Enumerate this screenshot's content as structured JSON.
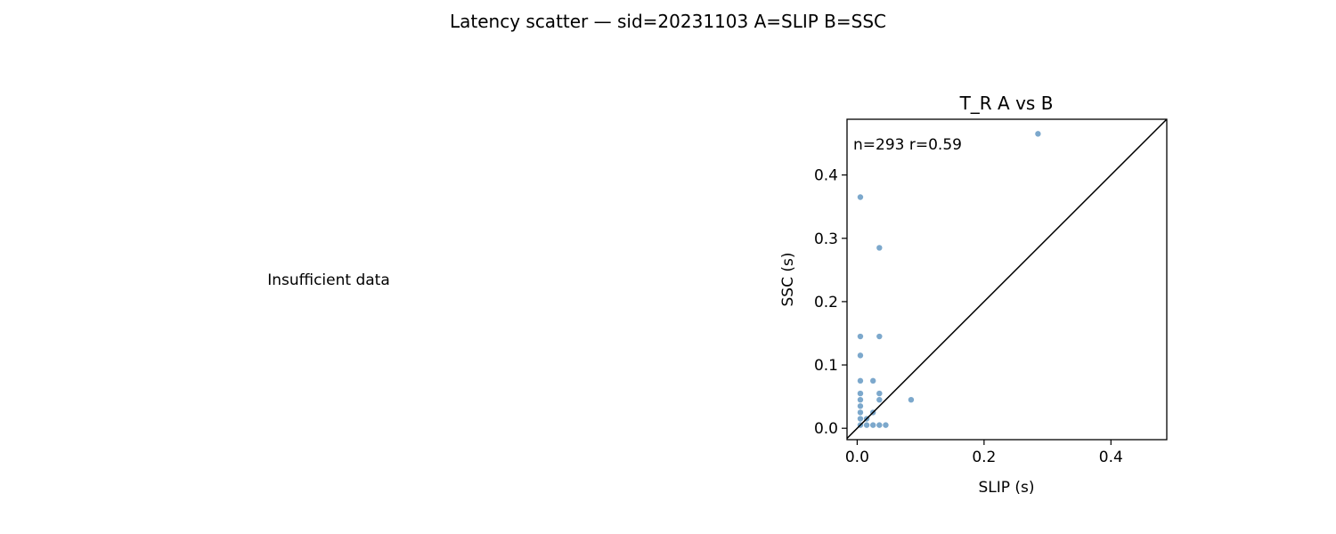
{
  "figure": {
    "suptitle": "Latency scatter — sid=20231103  A=SLIP  B=SSC",
    "left_panel_message": "Insufficient data"
  },
  "chart_data": {
    "type": "scatter",
    "title": "T_R  A vs B",
    "xlabel": "SLIP (s)",
    "ylabel": "SSC (s)",
    "xlim": [
      -0.016,
      0.488
    ],
    "ylim": [
      -0.018,
      0.488
    ],
    "xticks": [
      0.0,
      0.2,
      0.4
    ],
    "xtick_labels": [
      "0.0",
      "0.2",
      "0.4"
    ],
    "yticks": [
      0.0,
      0.1,
      0.2,
      0.3,
      0.4
    ],
    "ytick_labels": [
      "0.0",
      "0.1",
      "0.2",
      "0.3",
      "0.4"
    ],
    "annotation": "n=293   r=0.59",
    "identity_line": true,
    "point_color": "#4a86b8",
    "points": [
      {
        "x": 0.005,
        "y": 0.005
      },
      {
        "x": 0.005,
        "y": 0.015
      },
      {
        "x": 0.005,
        "y": 0.025
      },
      {
        "x": 0.005,
        "y": 0.035
      },
      {
        "x": 0.005,
        "y": 0.045
      },
      {
        "x": 0.005,
        "y": 0.055
      },
      {
        "x": 0.005,
        "y": 0.075
      },
      {
        "x": 0.005,
        "y": 0.115
      },
      {
        "x": 0.005,
        "y": 0.145
      },
      {
        "x": 0.005,
        "y": 0.365
      },
      {
        "x": 0.015,
        "y": 0.005
      },
      {
        "x": 0.015,
        "y": 0.015
      },
      {
        "x": 0.025,
        "y": 0.005
      },
      {
        "x": 0.025,
        "y": 0.025
      },
      {
        "x": 0.025,
        "y": 0.075
      },
      {
        "x": 0.035,
        "y": 0.005
      },
      {
        "x": 0.035,
        "y": 0.045
      },
      {
        "x": 0.035,
        "y": 0.055
      },
      {
        "x": 0.035,
        "y": 0.145
      },
      {
        "x": 0.035,
        "y": 0.285
      },
      {
        "x": 0.045,
        "y": 0.005
      },
      {
        "x": 0.085,
        "y": 0.045
      },
      {
        "x": 0.285,
        "y": 0.465
      }
    ]
  }
}
